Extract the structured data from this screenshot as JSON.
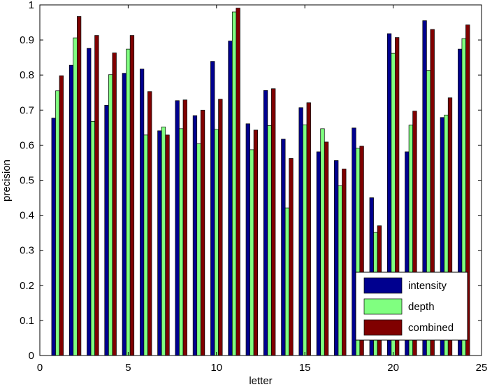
{
  "chart_data": {
    "type": "bar",
    "xlabel": "letter",
    "ylabel": "precision",
    "xlim": [
      0,
      25
    ],
    "ylim": [
      0,
      1
    ],
    "xticks": [
      "0",
      "5",
      "10",
      "15",
      "20",
      "25"
    ],
    "yticks": [
      "0",
      "0.1",
      "0.2",
      "0.3",
      "0.4",
      "0.5",
      "0.6",
      "0.7",
      "0.8",
      "0.9",
      "1"
    ],
    "categories": [
      1,
      2,
      3,
      4,
      5,
      6,
      7,
      8,
      9,
      10,
      11,
      12,
      13,
      14,
      15,
      16,
      17,
      18,
      19,
      20,
      21,
      22,
      23,
      24
    ],
    "series": [
      {
        "name": "intensity",
        "color": "#00008f",
        "values": [
          0.677,
          0.828,
          0.876,
          0.714,
          0.805,
          0.817,
          0.641,
          0.727,
          0.684,
          0.839,
          0.897,
          0.661,
          0.756,
          0.617,
          0.707,
          0.581,
          0.556,
          0.649,
          0.45,
          0.918,
          0.581,
          0.955,
          0.679,
          0.874
        ]
      },
      {
        "name": "depth",
        "color": "#80ff80",
        "values": [
          0.755,
          0.906,
          0.668,
          0.801,
          0.874,
          0.629,
          0.652,
          0.647,
          0.604,
          0.645,
          0.98,
          0.587,
          0.656,
          0.421,
          0.658,
          0.647,
          0.484,
          0.591,
          0.351,
          0.862,
          0.657,
          0.813,
          0.686,
          0.904
        ]
      },
      {
        "name": "combined",
        "color": "#800000",
        "values": [
          0.798,
          0.967,
          0.913,
          0.863,
          0.913,
          0.753,
          0.629,
          0.729,
          0.7,
          0.731,
          0.991,
          0.643,
          0.761,
          0.562,
          0.721,
          0.609,
          0.532,
          0.597,
          0.37,
          0.907,
          0.697,
          0.93,
          0.735,
          0.943
        ]
      }
    ],
    "legend": "bottom-right",
    "grid": false
  }
}
